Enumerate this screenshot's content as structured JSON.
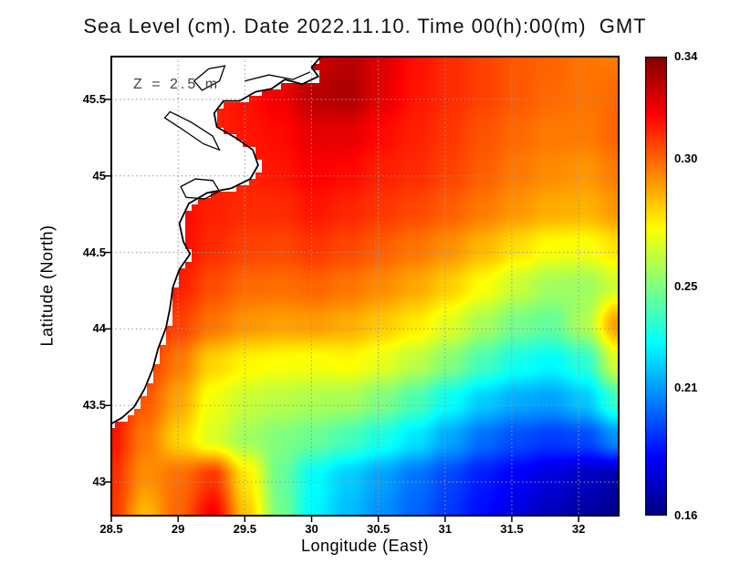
{
  "title": "Sea Level (cm). Date 2022.11.10. Time 00(h):00(m)  GMT",
  "annotation": "Z = 2.5 m",
  "axes": {
    "xlabel": "Longitude (East)",
    "ylabel": "Latitude (North)",
    "xlim": [
      28.5,
      32.3
    ],
    "ylim": [
      42.78,
      45.78
    ],
    "x_ticks": [
      28.5,
      29,
      29.5,
      30,
      30.5,
      31,
      31.5,
      32
    ],
    "x_tick_labels": [
      "28.5",
      "29",
      "29.5",
      "30",
      "30.5",
      "31",
      "31.5",
      "32"
    ],
    "y_ticks": [
      43,
      43.5,
      44,
      44.5,
      45,
      45.5
    ],
    "y_tick_labels": [
      "43",
      "43.5",
      "44",
      "44.5",
      "45",
      "45.5"
    ],
    "grid": "dotted"
  },
  "colorbar": {
    "min": 0.16,
    "max": 0.34,
    "tick_values": [
      0.34,
      0.3,
      0.25,
      0.21,
      0.16
    ],
    "tick_labels": [
      "0.34",
      "0.30",
      "0.25",
      "0.21",
      "0.16"
    ],
    "colormap": "jet",
    "position": "right"
  },
  "chart_data": {
    "type": "heatmap",
    "title": "Sea Level (cm). Date 2022.11.10. Time 00(h):00(m) GMT",
    "xlabel": "Longitude (East)",
    "ylabel": "Latitude (North)",
    "xlim": [
      28.5,
      32.3
    ],
    "ylim": [
      42.78,
      45.78
    ],
    "value_range": [
      0.16,
      0.34
    ],
    "colormap": "jet",
    "lon": [
      28.5,
      28.75,
      29.01,
      29.26,
      29.51,
      29.77,
      30.02,
      30.27,
      30.53,
      30.78,
      31.03,
      31.29,
      31.54,
      31.79,
      32.05,
      32.3
    ],
    "lat": [
      45.78,
      45.53,
      45.28,
      45.03,
      44.78,
      44.53,
      44.28,
      44.03,
      43.78,
      43.53,
      43.28,
      43.03,
      42.78
    ],
    "values": [
      [
        0.31,
        0.31,
        0.31,
        0.31,
        0.312,
        0.318,
        0.326,
        0.33,
        0.324,
        0.315,
        0.31,
        0.306,
        0.302,
        0.3,
        0.297,
        0.296
      ],
      [
        0.31,
        0.31,
        0.31,
        0.312,
        0.315,
        0.32,
        0.33,
        0.332,
        0.322,
        0.314,
        0.31,
        0.306,
        0.302,
        0.299,
        0.297,
        0.299
      ],
      [
        0.31,
        0.31,
        0.31,
        0.312,
        0.314,
        0.316,
        0.322,
        0.322,
        0.316,
        0.312,
        0.308,
        0.303,
        0.299,
        0.296,
        0.296,
        0.3
      ],
      [
        0.312,
        0.314,
        0.314,
        0.312,
        0.312,
        0.314,
        0.318,
        0.316,
        0.312,
        0.31,
        0.306,
        0.301,
        0.296,
        0.293,
        0.291,
        0.296
      ],
      [
        0.316,
        0.32,
        0.316,
        0.312,
        0.31,
        0.31,
        0.314,
        0.311,
        0.308,
        0.305,
        0.301,
        0.296,
        0.291,
        0.287,
        0.286,
        0.291
      ],
      [
        0.32,
        0.322,
        0.316,
        0.31,
        0.306,
        0.305,
        0.308,
        0.305,
        0.301,
        0.297,
        0.292,
        0.285,
        0.278,
        0.272,
        0.271,
        0.277
      ],
      [
        0.32,
        0.318,
        0.312,
        0.304,
        0.299,
        0.298,
        0.3,
        0.297,
        0.293,
        0.288,
        0.281,
        0.272,
        0.263,
        0.256,
        0.255,
        0.264
      ],
      [
        0.318,
        0.314,
        0.306,
        0.297,
        0.291,
        0.289,
        0.29,
        0.287,
        0.282,
        0.276,
        0.267,
        0.257,
        0.248,
        0.245,
        0.258,
        0.29
      ],
      [
        0.316,
        0.308,
        0.296,
        0.28,
        0.274,
        0.272,
        0.271,
        0.273,
        0.268,
        0.261,
        0.251,
        0.24,
        0.231,
        0.227,
        0.235,
        0.266
      ],
      [
        0.315,
        0.302,
        0.288,
        0.27,
        0.263,
        0.26,
        0.258,
        0.257,
        0.25,
        0.241,
        0.229,
        0.219,
        0.213,
        0.211,
        0.218,
        0.238
      ],
      [
        0.314,
        0.296,
        0.28,
        0.266,
        0.256,
        0.25,
        0.246,
        0.24,
        0.232,
        0.223,
        0.212,
        0.202,
        0.196,
        0.193,
        0.195,
        0.208
      ],
      [
        0.31,
        0.292,
        0.298,
        0.308,
        0.276,
        0.246,
        0.228,
        0.219,
        0.211,
        0.203,
        0.195,
        0.187,
        0.181,
        0.176,
        0.172,
        0.168
      ],
      [
        0.308,
        0.285,
        0.3,
        0.318,
        0.282,
        0.248,
        0.226,
        0.216,
        0.208,
        0.2,
        0.192,
        0.184,
        0.177,
        0.171,
        0.166,
        0.162
      ]
    ]
  },
  "map": {
    "land_color": "#ffffff",
    "coast_color": "#000000",
    "coastline": [
      [
        30.07,
        45.78
      ],
      [
        30.0,
        45.71
      ],
      [
        30.05,
        45.65
      ],
      [
        29.93,
        45.6
      ],
      [
        29.8,
        45.63
      ],
      [
        29.7,
        45.57
      ],
      [
        29.58,
        45.55
      ],
      [
        29.46,
        45.49
      ],
      [
        29.34,
        45.49
      ],
      [
        29.27,
        45.41
      ],
      [
        29.29,
        45.32
      ],
      [
        29.43,
        45.25
      ],
      [
        29.56,
        45.17
      ],
      [
        29.6,
        45.07
      ],
      [
        29.54,
        44.98
      ],
      [
        29.4,
        44.92
      ],
      [
        29.22,
        44.89
      ],
      [
        29.08,
        44.82
      ],
      [
        29.01,
        44.69
      ],
      [
        29.04,
        44.57
      ],
      [
        29.09,
        44.49
      ],
      [
        29.01,
        44.39
      ],
      [
        28.96,
        44.27
      ],
      [
        28.94,
        44.14
      ],
      [
        28.91,
        44.01
      ],
      [
        28.85,
        43.87
      ],
      [
        28.81,
        43.74
      ],
      [
        28.75,
        43.61
      ],
      [
        28.67,
        43.49
      ],
      [
        28.58,
        43.42
      ],
      [
        28.5,
        43.38
      ]
    ],
    "lakes": [
      [
        [
          29.02,
          44.93
        ],
        [
          29.13,
          44.98
        ],
        [
          29.26,
          44.97
        ],
        [
          29.31,
          44.9
        ],
        [
          29.2,
          44.85
        ],
        [
          29.06,
          44.86
        ],
        [
          29.02,
          44.93
        ]
      ],
      [
        [
          28.94,
          45.42
        ],
        [
          29.1,
          45.35
        ],
        [
          29.26,
          45.26
        ],
        [
          29.31,
          45.17
        ],
        [
          29.19,
          45.21
        ],
        [
          29.04,
          45.3
        ],
        [
          28.9,
          45.38
        ],
        [
          28.94,
          45.42
        ]
      ],
      [
        [
          29.12,
          45.62
        ],
        [
          29.23,
          45.7
        ],
        [
          29.35,
          45.72
        ],
        [
          29.31,
          45.62
        ],
        [
          29.18,
          45.56
        ],
        [
          29.12,
          45.62
        ]
      ]
    ],
    "channel": [
      [
        29.5,
        45.62
      ],
      [
        29.68,
        45.66
      ],
      [
        29.86,
        45.63
      ],
      [
        29.99,
        45.68
      ]
    ]
  }
}
